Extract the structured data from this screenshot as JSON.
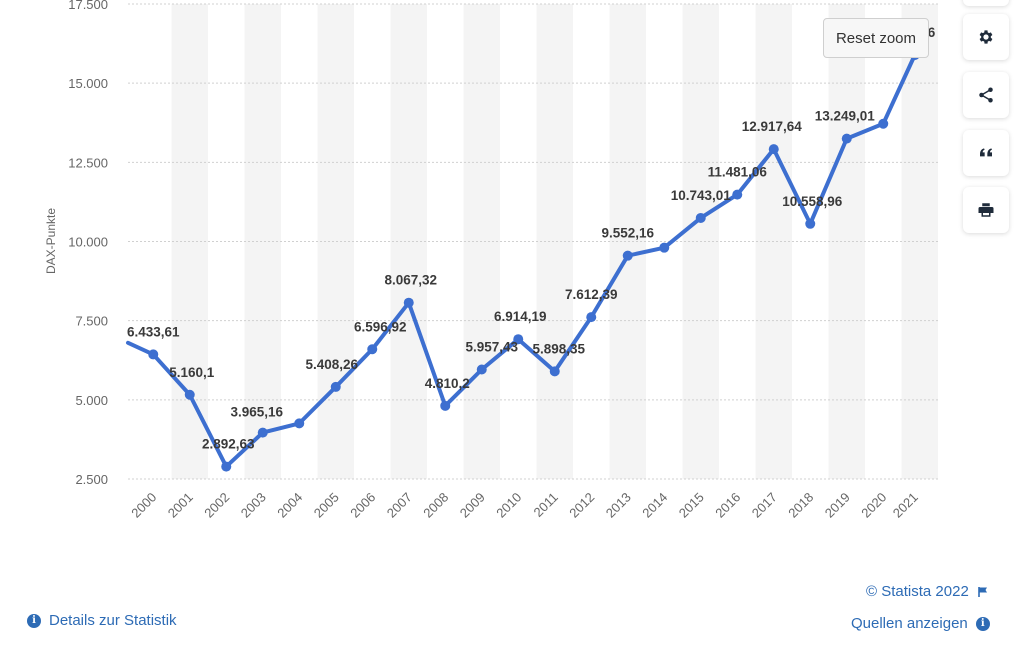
{
  "chart_data": {
    "type": "line",
    "ylabel": "DAX-Punkte",
    "ylim": [
      2500,
      17500
    ],
    "yticks": [
      "2.500",
      "5.000",
      "7.500",
      "10.000",
      "12.500",
      "15.000",
      "17.500"
    ],
    "ytick_values": [
      2500,
      5000,
      7500,
      10000,
      12500,
      15000,
      17500
    ],
    "categories": [
      "2000",
      "2001",
      "2002",
      "2003",
      "2004",
      "2005",
      "2006",
      "2007",
      "2008",
      "2009",
      "2010",
      "2011",
      "2012",
      "2013",
      "2014",
      "2015",
      "2016",
      "2017",
      "2018",
      "2019",
      "2020",
      "2021"
    ],
    "values": [
      6433.61,
      5160.1,
      2892.63,
      3965.16,
      4256.08,
      5408.26,
      6596.92,
      8067.32,
      4810.2,
      5957.43,
      6914.19,
      5898.35,
      7612.39,
      9552.16,
      9805.55,
      10743.01,
      11481.06,
      12917.64,
      10558.96,
      13249.01,
      13718.78,
      15884.86
    ],
    "point_labels": [
      "6.433,61",
      "5.160,1",
      "2.892,63",
      "3.965,16",
      "",
      "5.408,26",
      "6.596,92",
      "8.067,32",
      "4.810,2",
      "5.957,43",
      "6.914,19",
      "5.898,35",
      "7.612,39",
      "9.552,16",
      "",
      "10.743,01",
      "11.481,06",
      "12.917,64",
      "10.558,96",
      "13.249,01",
      "",
      "…6"
    ],
    "start_value": 6800,
    "grid": true,
    "line_color": "#3d6fd0"
  },
  "controls": {
    "reset_zoom": "Reset zoom"
  },
  "side_icons": [
    "gear-icon",
    "share-icon",
    "quote-icon",
    "print-icon"
  ],
  "footer": {
    "copyright": "© Statista 2022",
    "details": "Details zur Statistik",
    "sources": "Quellen anzeigen"
  }
}
